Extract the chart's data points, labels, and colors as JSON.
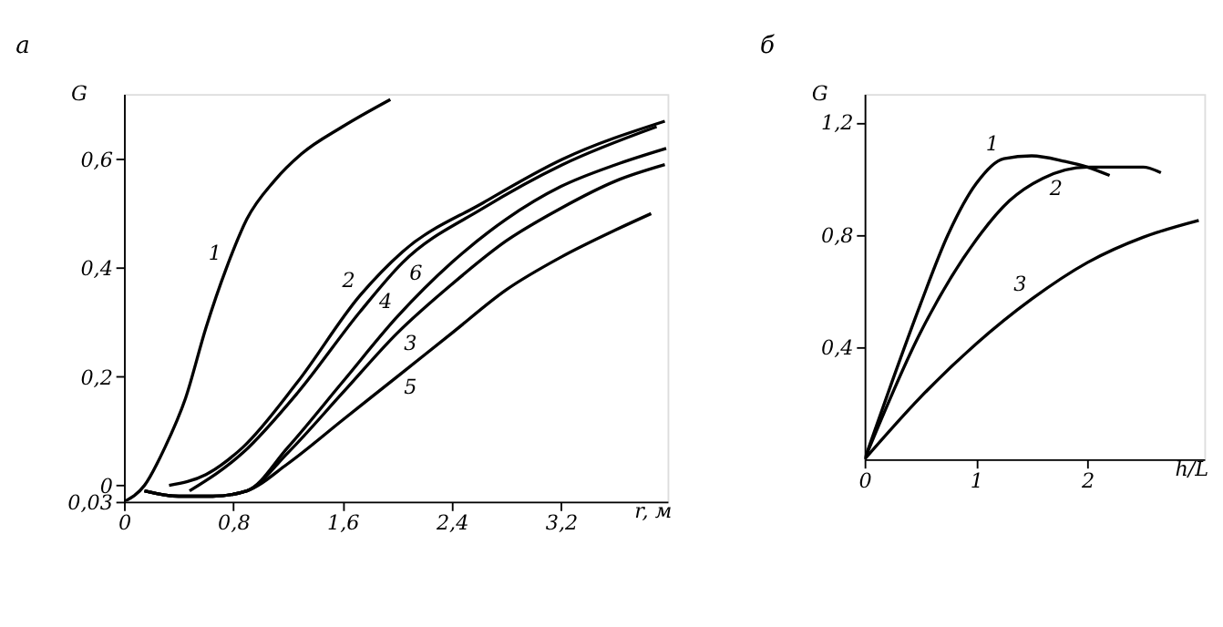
{
  "chart_data": [
    {
      "type": "line",
      "title": "а",
      "xlabel": "r, м",
      "ylabel": "G",
      "xlim": [
        0,
        3.98
      ],
      "ylim": [
        -0.03,
        0.72
      ],
      "xticks": [
        0,
        {
          "value": 0.8,
          "label": "0,8"
        },
        {
          "value": 1.6,
          "label": "1,6"
        },
        {
          "value": 2.4,
          "label": "2,4"
        },
        {
          "value": 3.2,
          "label": "3,2"
        }
      ],
      "yticks": [
        {
          "value": -0.03,
          "label": "0,03"
        },
        0,
        {
          "value": 0.2,
          "label": "0,2"
        },
        {
          "value": 0.4,
          "label": "0,4"
        },
        {
          "value": 0.6,
          "label": "0,6"
        }
      ],
      "grid": false,
      "marker": "none",
      "line_style": "solid",
      "series": [
        {
          "name": "1",
          "color": "#000000",
          "x": [
            0,
            0.15,
            0.3,
            0.45,
            0.6,
            0.75,
            0.9,
            1.1,
            1.3,
            1.6,
            1.95
          ],
          "values": [
            -0.03,
            0,
            0.07,
            0.16,
            0.29,
            0.4,
            0.49,
            0.56,
            0.61,
            0.66,
            0.71
          ]
        },
        {
          "name": "6",
          "color": "#000000",
          "x": [
            0.48,
            0.87,
            1.27,
            1.73,
            2.04,
            2.63,
            3.21,
            3.9
          ],
          "values": [
            -0.01,
            0.06,
            0.17,
            0.32,
            0.41,
            0.51,
            0.59,
            0.66
          ]
        },
        {
          "name": "2",
          "color": "#000000",
          "x": [
            0.33,
            0.6,
            0.87,
            1.27,
            1.73,
            2.04,
            2.63,
            3.21,
            3.96
          ],
          "values": [
            0,
            0.02,
            0.07,
            0.19,
            0.35,
            0.43,
            0.52,
            0.6,
            0.67
          ]
        },
        {
          "name": "3",
          "color": "#000000",
          "x": [
            0.15,
            0.4,
            0.65,
            0.9,
            1.2,
            1.6,
            2.0,
            2.4,
            2.8,
            3.2,
            3.6,
            3.96
          ],
          "values": [
            -0.01,
            -0.02,
            -0.02,
            -0.01,
            0.06,
            0.17,
            0.28,
            0.37,
            0.45,
            0.51,
            0.56,
            0.59
          ]
        },
        {
          "name": "4",
          "color": "#000000",
          "x": [
            0.15,
            0.4,
            0.65,
            0.9,
            1.2,
            1.6,
            2.0,
            2.4,
            2.8,
            3.2,
            3.6,
            3.97
          ],
          "values": [
            -0.01,
            -0.02,
            -0.02,
            -0.01,
            0.07,
            0.19,
            0.31,
            0.41,
            0.49,
            0.55,
            0.59,
            0.62
          ]
        },
        {
          "name": "5",
          "color": "#000000",
          "x": [
            0.15,
            0.4,
            0.65,
            0.9,
            1.2,
            1.6,
            2.0,
            2.4,
            2.8,
            3.2,
            3.6,
            3.86
          ],
          "values": [
            -0.01,
            -0.02,
            -0.02,
            -0.01,
            0.04,
            0.12,
            0.2,
            0.28,
            0.36,
            0.42,
            0.47,
            0.5
          ]
        }
      ]
    },
    {
      "type": "line",
      "title": "б",
      "xlabel": "h/L",
      "ylabel": "G",
      "xlim": [
        0,
        3.05
      ],
      "ylim": [
        0,
        1.3
      ],
      "xticks": [
        0,
        1,
        2
      ],
      "yticks": [
        {
          "value": 0.4,
          "label": "0,4"
        },
        {
          "value": 0.8,
          "label": "0,8"
        },
        {
          "value": 1.2,
          "label": "1,2"
        }
      ],
      "grid": false,
      "marker": "none",
      "line_style": "solid",
      "series": [
        {
          "name": "1",
          "color": "#000000",
          "x": [
            0,
            0.25,
            0.5,
            0.75,
            1.0,
            1.25,
            1.5,
            1.8,
            2.0,
            2.2
          ],
          "values": [
            0,
            0.28,
            0.55,
            0.8,
            0.98,
            1.07,
            1.08,
            1.06,
            1.04,
            1.01
          ]
        },
        {
          "name": "2",
          "color": "#000000",
          "x": [
            0,
            0.5,
            1.0,
            1.3,
            1.6,
            2.0,
            2.5,
            2.66
          ],
          "values": [
            0,
            0.45,
            0.78,
            0.92,
            1.0,
            1.04,
            1.04,
            1.02
          ]
        },
        {
          "name": "3",
          "color": "#000000",
          "x": [
            0,
            0.5,
            1.0,
            1.5,
            2.0,
            2.5,
            3.0
          ],
          "values": [
            0,
            0.22,
            0.41,
            0.57,
            0.7,
            0.79,
            0.85
          ]
        }
      ]
    }
  ]
}
